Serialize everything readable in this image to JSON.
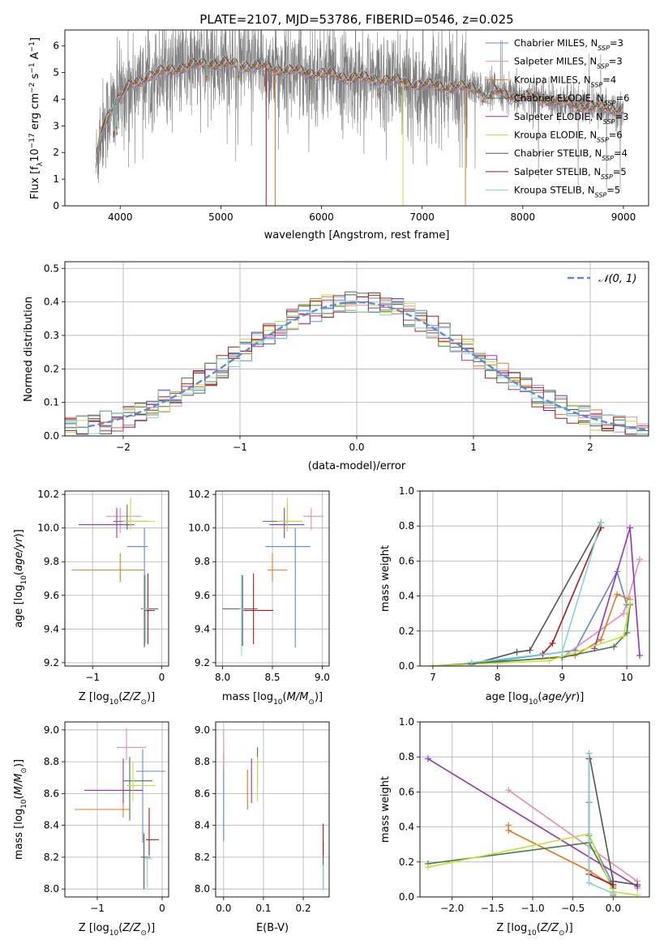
{
  "figure": {
    "title": "PLATE=2107, MJD=53786, FIBERID=0546, z=0.025"
  },
  "series_styles": [
    {
      "name": "Chabrier MILES",
      "nssp": "3",
      "color": "#5b8bd9"
    },
    {
      "name": "Salpeter MILES",
      "nssp": "3",
      "color": "#e88bb4"
    },
    {
      "name": "Kroupa MILES",
      "nssp": "4",
      "color": "#e07b20"
    },
    {
      "name": "Chabrier ELODIE",
      "nssp": "6",
      "color": "#3f7f3f"
    },
    {
      "name": "Salpeter ELODIE",
      "nssp": "3",
      "color": "#9a32b5"
    },
    {
      "name": "Kroupa ELODIE",
      "nssp": "6",
      "color": "#c8e03c"
    },
    {
      "name": "Chabrier STELIB",
      "nssp": "4",
      "color": "#555555"
    },
    {
      "name": "Salpeter STELIB",
      "nssp": "5",
      "color": "#b01818"
    },
    {
      "name": "Kroupa STELIB",
      "nssp": "5",
      "color": "#7fd6d8"
    }
  ],
  "chart_data": [
    {
      "id": "spectrum",
      "type": "line",
      "xlabel": "wavelength [Angstrom, rest frame]",
      "ylabel": "Flux [f_λ 10^-17 erg cm^-2 s^-1 A^-1]",
      "xlim": [
        3450,
        9250
      ],
      "ylim": [
        0,
        6.6
      ],
      "xticks": [
        4000,
        5000,
        6000,
        7000,
        8000,
        9000
      ],
      "yticks": [
        0,
        1,
        2,
        3,
        4,
        5,
        6
      ],
      "grid": false,
      "legend": "top-right",
      "data_color": "#808080",
      "continuum": [
        [
          3760,
          1.5
        ],
        [
          3800,
          2.7
        ],
        [
          3900,
          3.6
        ],
        [
          4000,
          4.1
        ],
        [
          4100,
          4.5
        ],
        [
          4300,
          4.9
        ],
        [
          4500,
          5.1
        ],
        [
          4700,
          5.25
        ],
        [
          4900,
          5.35
        ],
        [
          5100,
          5.3
        ],
        [
          5300,
          5.25
        ],
        [
          5500,
          5.15
        ],
        [
          5700,
          5.05
        ],
        [
          5900,
          5.0
        ],
        [
          6100,
          4.9
        ],
        [
          6300,
          4.8
        ],
        [
          6500,
          4.75
        ],
        [
          6700,
          4.7
        ],
        [
          6900,
          4.55
        ],
        [
          7100,
          4.5
        ],
        [
          7300,
          4.45
        ],
        [
          7500,
          4.4
        ],
        [
          7700,
          4.3
        ],
        [
          7900,
          4.1
        ],
        [
          8100,
          4.05
        ],
        [
          8300,
          3.95
        ],
        [
          8500,
          3.8
        ],
        [
          8700,
          3.7
        ],
        [
          8900,
          3.65
        ],
        [
          9000,
          3.6
        ]
      ]
    },
    {
      "id": "residuals",
      "type": "bar",
      "xlabel": "(data-model)/error",
      "ylabel": "Normed distribution",
      "xlim": [
        -2.5,
        2.5
      ],
      "ylim": [
        0,
        0.52
      ],
      "xticks": [
        -2,
        -1,
        0,
        1,
        2
      ],
      "yticks": [
        0.0,
        0.1,
        0.2,
        0.3,
        0.4,
        0.5
      ],
      "grid": true,
      "legend": "top-right",
      "reference_label": "𝒩(0, 1)",
      "reference_color": "#5b8bd9",
      "bin_width": 0.1
    },
    {
      "id": "age_vs_Z",
      "type": "scatter",
      "xlabel": "Z [log10(Z/Z⊙)]",
      "ylabel": "age [log10(age/yr)]",
      "xlim": [
        -1.4,
        0.1
      ],
      "ylim": [
        9.18,
        10.22
      ],
      "xticks": [
        -1,
        0
      ],
      "yticks": [
        9.2,
        9.4,
        9.6,
        9.8,
        10.0,
        10.2
      ],
      "grid": true,
      "points": [
        {
          "x": -0.25,
          "y": 9.89,
          "xerr": [
            0.25,
            0.05
          ],
          "yerr": [
            0.6,
            0.11
          ]
        },
        {
          "x": -0.6,
          "y": 10.07,
          "xerr": [
            0.2,
            0.3
          ],
          "yerr": [
            0.1,
            0.05
          ]
        },
        {
          "x": -0.6,
          "y": 9.75,
          "xerr": [
            0.7,
            0.35
          ],
          "yerr": [
            0.07,
            0.1
          ]
        },
        {
          "x": -0.5,
          "y": 10.04,
          "xerr": [
            0.2,
            0.3
          ],
          "yerr": [
            0.05,
            0.1
          ]
        },
        {
          "x": -0.65,
          "y": 10.02,
          "xerr": [
            0.55,
            0.25
          ],
          "yerr": [
            0.08,
            0.1
          ]
        },
        {
          "x": -0.45,
          "y": 10.04,
          "xerr": [
            0.1,
            0.35
          ],
          "yerr": [
            0.05,
            0.14
          ]
        },
        {
          "x": -0.25,
          "y": 9.52,
          "xerr": [
            0.05,
            0.2
          ],
          "yerr": [
            0.22,
            0.2
          ]
        },
        {
          "x": -0.2,
          "y": 9.51,
          "xerr": [
            0.05,
            0.1
          ],
          "yerr": [
            0.2,
            0.22
          ]
        },
        {
          "x": -0.23,
          "y": 9.52,
          "xerr": [
            0.05,
            0.04
          ],
          "yerr": [
            0.2,
            0.2
          ]
        }
      ]
    },
    {
      "id": "age_vs_mass",
      "type": "scatter",
      "xlabel": "mass [log10(M/M⊙)]",
      "ylabel": "",
      "xlim": [
        7.93,
        9.07
      ],
      "ylim": [
        9.18,
        10.22
      ],
      "xticks": [
        8.0,
        8.5,
        9.0
      ],
      "yticks": [
        9.2,
        9.4,
        9.6,
        9.8,
        10.0,
        10.2
      ],
      "grid": true,
      "points": [
        {
          "x": 8.73,
          "y": 9.89,
          "xerr": [
            0.3,
            0.15
          ],
          "yerr": [
            0.6,
            0.11
          ]
        },
        {
          "x": 8.89,
          "y": 10.07,
          "xerr": [
            0.08,
            0.12
          ],
          "yerr": [
            0.08,
            0.05
          ]
        },
        {
          "x": 8.5,
          "y": 9.75,
          "xerr": [
            0.05,
            0.15
          ],
          "yerr": [
            0.07,
            0.1
          ]
        },
        {
          "x": 8.65,
          "y": 10.04,
          "xerr": [
            0.25,
            0.15
          ],
          "yerr": [
            0.06,
            0.1
          ]
        },
        {
          "x": 8.62,
          "y": 10.02,
          "xerr": [
            0.15,
            0.2
          ],
          "yerr": [
            0.08,
            0.1
          ]
        },
        {
          "x": 8.65,
          "y": 10.04,
          "xerr": [
            0.1,
            0.15
          ],
          "yerr": [
            0.06,
            0.14
          ]
        },
        {
          "x": 8.2,
          "y": 9.52,
          "xerr": [
            0.2,
            0.15
          ],
          "yerr": [
            0.22,
            0.2
          ]
        },
        {
          "x": 8.31,
          "y": 9.51,
          "xerr": [
            0.1,
            0.2
          ],
          "yerr": [
            0.2,
            0.22
          ]
        },
        {
          "x": 8.19,
          "y": 9.52,
          "xerr": [
            0.02,
            0.02
          ],
          "yerr": [
            0.28,
            0.2
          ]
        }
      ]
    },
    {
      "id": "weight_vs_age",
      "type": "line",
      "xlabel": "age [log10(age/yr)]",
      "ylabel": "mass weight",
      "xlim": [
        6.8,
        10.35
      ],
      "ylim": [
        0,
        1.0
      ],
      "xticks": [
        7,
        8,
        9,
        10
      ],
      "yticks": [
        0.0,
        0.2,
        0.4,
        0.6,
        0.8,
        1.0
      ],
      "grid": true,
      "series": [
        {
          "points": [
            [
              7.6,
              0.01
            ],
            [
              9.2,
              0.09
            ],
            [
              9.85,
              0.54
            ],
            [
              10.0,
              0.35
            ]
          ]
        },
        {
          "points": [
            [
              9.0,
              0.05
            ],
            [
              9.95,
              0.3
            ],
            [
              10.2,
              0.61
            ]
          ]
        },
        {
          "points": [
            [
              7.6,
              0.01
            ],
            [
              9.2,
              0.06
            ],
            [
              9.6,
              0.15
            ],
            [
              9.85,
              0.41
            ],
            [
              10.05,
              0.38
            ]
          ]
        },
        {
          "points": [
            [
              7.0,
              0.0
            ],
            [
              9.0,
              0.05
            ],
            [
              9.8,
              0.11
            ],
            [
              10.0,
              0.19
            ],
            [
              10.05,
              0.35
            ]
          ]
        },
        {
          "points": [
            [
              9.5,
              0.1
            ],
            [
              10.05,
              0.79
            ],
            [
              10.2,
              0.06
            ]
          ]
        },
        {
          "points": [
            [
              7.0,
              0.0
            ],
            [
              8.8,
              0.03
            ],
            [
              9.95,
              0.17
            ],
            [
              10.05,
              0.36
            ]
          ]
        },
        {
          "points": [
            [
              7.6,
              0.01
            ],
            [
              8.3,
              0.08
            ],
            [
              8.5,
              0.09
            ],
            [
              9.6,
              0.82
            ]
          ]
        },
        {
          "points": [
            [
              8.7,
              0.07
            ],
            [
              8.85,
              0.13
            ],
            [
              9.6,
              0.79
            ]
          ]
        },
        {
          "points": [
            [
              7.6,
              0.02
            ],
            [
              9.0,
              0.08
            ],
            [
              9.6,
              0.82
            ]
          ]
        }
      ]
    },
    {
      "id": "mass_vs_Z",
      "type": "scatter",
      "xlabel": "Z [log10(Z/Z⊙)]",
      "ylabel": "mass [log10(M/M⊙)]",
      "xlim": [
        -1.5,
        0.1
      ],
      "ylim": [
        7.95,
        9.05
      ],
      "xticks": [
        -1,
        0
      ],
      "yticks": [
        8.0,
        8.2,
        8.4,
        8.6,
        8.8,
        9.0
      ],
      "grid": true,
      "points": [
        {
          "x": -0.3,
          "y": 8.74,
          "xerr": [
            0.1,
            0.35
          ],
          "yerr": [
            0.45,
            0.14
          ]
        },
        {
          "x": -0.55,
          "y": 8.89,
          "xerr": [
            0.15,
            0.3
          ],
          "yerr": [
            0.08,
            0.12
          ]
        },
        {
          "x": -0.6,
          "y": 8.5,
          "xerr": [
            0.75,
            0.1
          ],
          "yerr": [
            0.05,
            0.15
          ]
        },
        {
          "x": -0.5,
          "y": 8.68,
          "xerr": [
            0.1,
            0.35
          ],
          "yerr": [
            0.25,
            0.15
          ]
        },
        {
          "x": -0.6,
          "y": 8.62,
          "xerr": [
            0.6,
            0.3
          ],
          "yerr": [
            0.08,
            0.2
          ]
        },
        {
          "x": -0.45,
          "y": 8.65,
          "xerr": [
            0.1,
            0.35
          ],
          "yerr": [
            0.1,
            0.15
          ]
        },
        {
          "x": -0.28,
          "y": 8.2,
          "xerr": [
            0.05,
            0.1
          ],
          "yerr": [
            0.2,
            0.15
          ]
        },
        {
          "x": -0.2,
          "y": 8.31,
          "xerr": [
            0.05,
            0.15
          ],
          "yerr": [
            0.1,
            0.2
          ]
        },
        {
          "x": -0.23,
          "y": 8.19,
          "xerr": [
            0.05,
            0.08
          ],
          "yerr": [
            0.18,
            0.02
          ]
        }
      ]
    },
    {
      "id": "mass_vs_ebv",
      "type": "scatter",
      "xlabel": "E(B-V)",
      "ylabel": "",
      "xlim": [
        -0.02,
        0.265
      ],
      "ylim": [
        7.95,
        9.05
      ],
      "xticks": [
        0.0,
        0.1,
        0.2
      ],
      "yticks": [
        8.0,
        8.2,
        8.4,
        8.6,
        8.8,
        9.0
      ],
      "grid": true,
      "points": [
        {
          "x": 0.0,
          "y": 8.6,
          "xerr": [
            0,
            0
          ],
          "yerr": [
            0.3,
            0.25
          ]
        },
        {
          "x": 0.0,
          "y": 8.85,
          "xerr": [
            0,
            0
          ],
          "yerr": [
            0.1,
            0.15
          ]
        },
        {
          "x": 0.06,
          "y": 8.6,
          "xerr": [
            0,
            0
          ],
          "yerr": [
            0.1,
            0.15
          ]
        },
        {
          "x": 0.085,
          "y": 8.74,
          "xerr": [
            0,
            0
          ],
          "yerr": [
            0.1,
            0.15
          ]
        },
        {
          "x": 0.07,
          "y": 8.62,
          "xerr": [
            0,
            0
          ],
          "yerr": [
            0.08,
            0.2
          ]
        },
        {
          "x": 0.085,
          "y": 8.65,
          "xerr": [
            0,
            0
          ],
          "yerr": [
            0.1,
            0.18
          ]
        },
        {
          "x": 0.25,
          "y": 8.2,
          "xerr": [
            0,
            0
          ],
          "yerr": [
            0.2,
            0.1
          ]
        },
        {
          "x": 0.25,
          "y": 8.31,
          "xerr": [
            0,
            0
          ],
          "yerr": [
            0.1,
            0.1
          ]
        },
        {
          "x": 0.25,
          "y": 8.05,
          "xerr": [
            0,
            0
          ],
          "yerr": [
            0.06,
            0.1
          ]
        }
      ]
    },
    {
      "id": "weight_vs_Z",
      "type": "line",
      "xlabel": "Z [log10(Z/Z⊙)]",
      "ylabel": "mass weight",
      "xlim": [
        -2.4,
        0.45
      ],
      "ylim": [
        0,
        1.0
      ],
      "xticks": [
        -2.0,
        -1.5,
        -1.0,
        -0.5,
        0.0
      ],
      "yticks": [
        0.0,
        0.2,
        0.4,
        0.6,
        0.8,
        1.0
      ],
      "grid": true,
      "series": [
        {
          "points": [
            [
              -0.3,
              0.54
            ],
            [
              -0.3,
              0.35
            ],
            [
              0.0,
              0.07
            ],
            [
              0.0,
              0.01
            ]
          ]
        },
        {
          "points": [
            [
              -1.3,
              0.61
            ],
            [
              0.3,
              0.09
            ],
            [
              0.3,
              0.05
            ]
          ]
        },
        {
          "points": [
            [
              -1.3,
              0.41
            ],
            [
              -1.3,
              0.38
            ],
            [
              -0.3,
              0.15
            ],
            [
              0.0,
              0.06
            ],
            [
              0.0,
              0.01
            ]
          ]
        },
        {
          "points": [
            [
              -2.3,
              0.19
            ],
            [
              -0.3,
              0.31
            ],
            [
              0.0,
              0.05
            ],
            [
              0.0,
              0.0
            ]
          ]
        },
        {
          "points": [
            [
              -2.3,
              0.79
            ],
            [
              0.3,
              0.06
            ]
          ]
        },
        {
          "points": [
            [
              -2.3,
              0.17
            ],
            [
              -0.3,
              0.36
            ],
            [
              0.0,
              0.03
            ],
            [
              0.3,
              0.01
            ]
          ]
        },
        {
          "points": [
            [
              -0.3,
              0.82
            ],
            [
              0.0,
              0.09
            ],
            [
              0.3,
              0.07
            ]
          ]
        },
        {
          "points": [
            [
              -0.3,
              0.79
            ],
            [
              -0.3,
              0.13
            ],
            [
              0.0,
              0.07
            ]
          ]
        },
        {
          "points": [
            [
              -0.3,
              0.82
            ],
            [
              -0.3,
              0.08
            ],
            [
              0.0,
              0.02
            ]
          ]
        }
      ]
    }
  ]
}
